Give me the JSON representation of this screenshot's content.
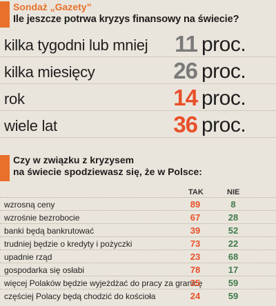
{
  "header": {
    "kicker": "Sondaż „Gazety”",
    "question": "Ile jeszcze potrwa kryzys finansowy na świecie?"
  },
  "duration_rows": [
    {
      "label": "kilka tygodni lub mniej",
      "value": "11",
      "unit": "proc.",
      "color": "#7a7a7a"
    },
    {
      "label": "kilka miesięcy",
      "value": "26",
      "unit": "proc.",
      "color": "#7a7a7a"
    },
    {
      "label": "rok",
      "value": "14",
      "unit": "proc.",
      "color": "#e8502a"
    },
    {
      "label": "wiele lat",
      "value": "36",
      "unit": "proc.",
      "color": "#e8502a"
    }
  ],
  "section2": {
    "question": "Czy w związku z kryzysem\nna świecie spodziewasz się, że w Polsce:"
  },
  "table": {
    "col_tak": "TAK",
    "col_nie": "NIE",
    "tak_color": "#e8502a",
    "nie_color": "#3f7a4a",
    "rows": [
      {
        "label": "wzrosną ceny",
        "tak": "89",
        "nie": "8"
      },
      {
        "label": "wzrośnie bezrobocie",
        "tak": "67",
        "nie": "28"
      },
      {
        "label": "banki będą bankrutować",
        "tak": "39",
        "nie": "52"
      },
      {
        "label": "trudniej będzie o kredyty i pożyczki",
        "tak": "73",
        "nie": "22"
      },
      {
        "label": "upadnie rząd",
        "tak": "23",
        "nie": "68"
      },
      {
        "label": "gospodarka się osłabi",
        "tak": "78",
        "nie": "17"
      },
      {
        "label": "więcej Polaków będzie wyjeżdżać do pracy za granicę",
        "tak": "35",
        "nie": "59"
      },
      {
        "label": "częściej Polacy będą chodzić do kościoła",
        "tak": "24",
        "nie": "59"
      }
    ]
  },
  "colors": {
    "accent": "#e8702a",
    "background": "#eae5dc"
  }
}
